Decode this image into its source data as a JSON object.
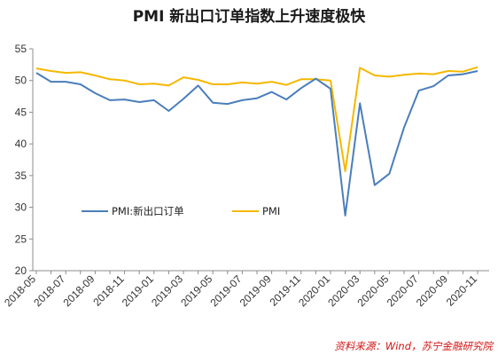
{
  "chart_data": {
    "type": "line",
    "title": "PMI 新出口订单指数上升速度极快",
    "xlabel": "",
    "ylabel": "",
    "ylim": [
      20,
      55
    ],
    "yticks": [
      20,
      25,
      30,
      35,
      40,
      45,
      50,
      55
    ],
    "grid": false,
    "legend": "center-left",
    "x": [
      "2018-05",
      "2018-06",
      "2018-07",
      "2018-08",
      "2018-09",
      "2018-10",
      "2018-11",
      "2018-12",
      "2019-01",
      "2019-02",
      "2019-03",
      "2019-04",
      "2019-05",
      "2019-06",
      "2019-07",
      "2019-08",
      "2019-09",
      "2019-10",
      "2019-11",
      "2019-12",
      "2020-01",
      "2020-02",
      "2020-03",
      "2020-04",
      "2020-05",
      "2020-06",
      "2020-07",
      "2020-08",
      "2020-09",
      "2020-10",
      "2020-11"
    ],
    "xtick_labels": [
      "2018-05",
      "2018-07",
      "2018-09",
      "2018-11",
      "2019-01",
      "2019-03",
      "2019-05",
      "2019-07",
      "2019-09",
      "2019-11",
      "2020-01",
      "2020-03",
      "2020-05",
      "2020-07",
      "2020-09",
      "2020-11"
    ],
    "series": [
      {
        "name": "PMI:新出口订单",
        "color": "#4a7ebb",
        "values": [
          51.2,
          49.8,
          49.8,
          49.4,
          48.0,
          46.9,
          47.0,
          46.6,
          46.9,
          45.2,
          47.1,
          49.2,
          46.5,
          46.3,
          46.9,
          47.2,
          48.2,
          47.0,
          48.8,
          50.3,
          48.7,
          28.7,
          46.4,
          33.5,
          35.3,
          42.6,
          48.4,
          49.1,
          50.8,
          51.0,
          51.5
        ]
      },
      {
        "name": "PMI",
        "color": "#f5b800",
        "values": [
          51.9,
          51.5,
          51.2,
          51.3,
          50.8,
          50.2,
          50.0,
          49.4,
          49.5,
          49.2,
          50.5,
          50.1,
          49.4,
          49.4,
          49.7,
          49.5,
          49.8,
          49.3,
          50.2,
          50.2,
          50.0,
          35.7,
          52.0,
          50.8,
          50.6,
          50.9,
          51.1,
          51.0,
          51.5,
          51.4,
          52.1
        ]
      }
    ],
    "source": "资料来源：Wind，苏宁金融研究院"
  }
}
